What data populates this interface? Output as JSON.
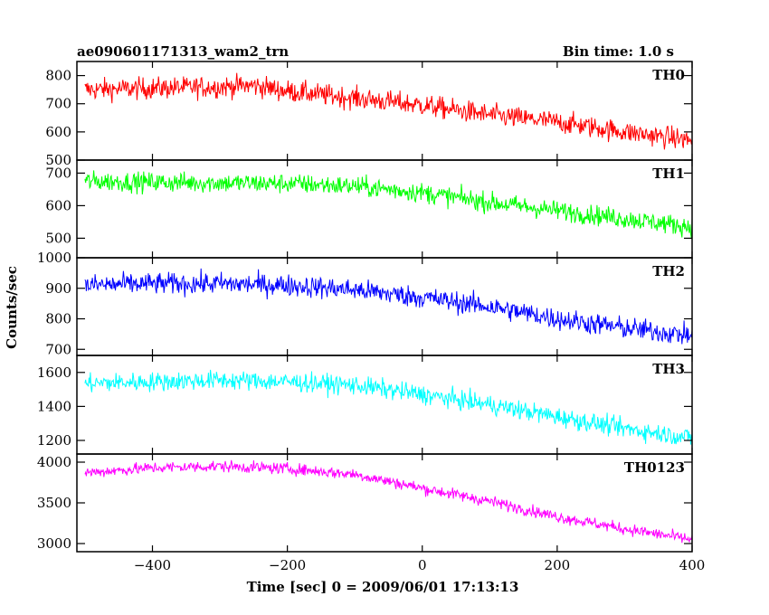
{
  "header": {
    "left_title": "ae090601171313_wam2_trn",
    "right_title": "Bin time: 1.0 s"
  },
  "chart_data": {
    "type": "line",
    "title": "ae090601171313_wam2_trn",
    "subtitle": "Bin time: 1.0 s",
    "xlabel": "Time [sec] 0 = 2009/06/01 17:13:13",
    "ylabel": "Counts/sec",
    "xlim": [
      -512,
      400
    ],
    "x_ticks": [
      -400,
      -200,
      0,
      200,
      400
    ],
    "grid": false,
    "series": [
      {
        "name": "TH0",
        "color": "#ff0000",
        "ylim": [
          500,
          850
        ],
        "y_ticks": [
          500,
          600,
          700,
          800
        ],
        "x": [
          -500,
          -400,
          -300,
          -250,
          -200,
          -100,
          0,
          100,
          200,
          300,
          400
        ],
        "values": [
          750,
          755,
          760,
          765,
          745,
          720,
          695,
          660,
          635,
          600,
          570
        ],
        "noise": 38
      },
      {
        "name": "TH1",
        "color": "#00ff00",
        "ylim": [
          440,
          740
        ],
        "y_ticks": [
          500,
          600,
          700
        ],
        "x": [
          -500,
          -400,
          -300,
          -200,
          -100,
          0,
          100,
          200,
          300,
          400
        ],
        "values": [
          675,
          672,
          670,
          668,
          660,
          640,
          610,
          585,
          560,
          535
        ],
        "noise": 30
      },
      {
        "name": "TH2",
        "color": "#0000ff",
        "ylim": [
          680,
          1000
        ],
        "y_ticks": [
          700,
          800,
          900,
          1000
        ],
        "x": [
          -500,
          -400,
          -300,
          -200,
          -100,
          0,
          100,
          200,
          300,
          400
        ],
        "values": [
          910,
          915,
          915,
          910,
          895,
          870,
          840,
          800,
          770,
          745
        ],
        "noise": 35
      },
      {
        "name": "TH3",
        "color": "#00ffff",
        "ylim": [
          1120,
          1700
        ],
        "y_ticks": [
          1200,
          1400,
          1600
        ],
        "x": [
          -500,
          -400,
          -300,
          -200,
          -100,
          0,
          100,
          200,
          300,
          400
        ],
        "values": [
          1535,
          1545,
          1555,
          1545,
          1525,
          1470,
          1410,
          1340,
          1270,
          1215
        ],
        "noise": 55
      },
      {
        "name": "TH0123",
        "color": "#ff00ff",
        "ylim": [
          2900,
          4100
        ],
        "y_ticks": [
          3000,
          3500,
          4000
        ],
        "x": [
          -500,
          -400,
          -300,
          -200,
          -100,
          0,
          100,
          200,
          300,
          400
        ],
        "values": [
          3870,
          3930,
          3950,
          3920,
          3850,
          3680,
          3520,
          3330,
          3180,
          3050
        ],
        "noise": 70
      }
    ]
  }
}
